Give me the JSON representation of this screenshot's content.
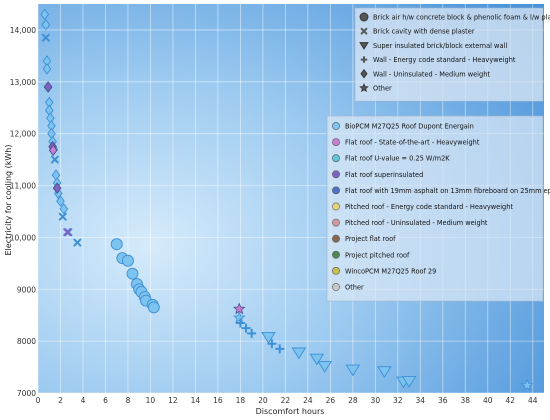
{
  "chart_data": {
    "type": "scatter",
    "xlabel": "Discomfort hours",
    "ylabel": "Electricity for cooling (kWh)",
    "xlim": [
      0,
      45
    ],
    "ylim": [
      7000,
      14500
    ],
    "x_ticks": [
      0,
      2,
      4,
      6,
      8,
      10,
      12,
      14,
      16,
      18,
      20,
      22,
      24,
      26,
      28,
      30,
      32,
      34,
      36,
      38,
      40,
      42,
      44
    ],
    "y_ticks": [
      7000,
      8000,
      9000,
      10000,
      11000,
      12000,
      13000,
      14000
    ],
    "y_tick_labels": [
      "7000",
      "8000",
      "9000",
      "10,000",
      "11,000",
      "12,000",
      "13,000",
      "14,000"
    ],
    "grid": true,
    "colors": {
      "bg_light": "#cfe6fa",
      "bg_dark": "#4f97dd",
      "marker_fill": "#7dc3ef",
      "marker_stroke": "#3d8fd6",
      "grid": "#ffffff"
    },
    "legend_walls": {
      "position": "top-right",
      "entries": [
        {
          "label": "Brick air h/w concrete block & phenolic foam & l/w plaster",
          "marker": "circle",
          "color": "#555555"
        },
        {
          "label": "Brick cavity with dense plaster",
          "marker": "x",
          "color": "#555555"
        },
        {
          "label": "Super insulated brick/block external wall",
          "marker": "triangle-down",
          "color": "#555555"
        },
        {
          "label": "Wall - Energy code standard - Heavyweight",
          "marker": "plus",
          "color": "#555555"
        },
        {
          "label": "Wall - Uninsulated - Medium weight",
          "marker": "diamond",
          "color": "#555555"
        },
        {
          "label": "Other",
          "marker": "star",
          "color": "#555555"
        }
      ]
    },
    "legend_roofs": {
      "position": "right",
      "entries": [
        {
          "label": "BioPCM M27Q25 Roof Dupont Energain",
          "color": "#7dc3ef"
        },
        {
          "label": "Flat roof - State-of-the-art - Heavyweight",
          "color": "#c97fd0"
        },
        {
          "label": "Flat roof U-value = 0.25 W/m2K",
          "color": "#62c4d8"
        },
        {
          "label": "Flat roof superinsulated",
          "color": "#7d63c4"
        },
        {
          "label": "Flat roof with 19mm asphalt on 13mm fibreboard on 25mm eps slab",
          "color": "#4f72c8"
        },
        {
          "label": "Pitched roof - Energy code standard - Heavyweight",
          "color": "#e6d47a"
        },
        {
          "label": "Pitched roof - Uninsulated - Medium weight",
          "color": "#cf9ba0"
        },
        {
          "label": "Project flat roof",
          "color": "#8a6850"
        },
        {
          "label": "Project pitched roof",
          "color": "#4f8a52"
        },
        {
          "label": "WincoPCM M27Q25 Roof 29",
          "color": "#c8c04a"
        },
        {
          "label": "Other",
          "color": "#c8c8c8"
        }
      ]
    },
    "series": [
      {
        "wall": "diamond",
        "roof_color": "#7dc3ef",
        "points": [
          [
            0.6,
            14300
          ],
          [
            0.7,
            14100
          ],
          [
            0.8,
            13400
          ],
          [
            0.8,
            13250
          ],
          [
            0.9,
            12900
          ],
          [
            1.0,
            12600
          ],
          [
            1.0,
            12450
          ],
          [
            1.1,
            12300
          ],
          [
            1.2,
            12150
          ],
          [
            1.2,
            12000
          ],
          [
            1.3,
            11850
          ],
          [
            1.4,
            11700
          ],
          [
            1.6,
            11200
          ],
          [
            1.7,
            11050
          ],
          [
            1.8,
            10850
          ],
          [
            2.0,
            10700
          ],
          [
            2.3,
            10550
          ]
        ]
      },
      {
        "wall": "diamond",
        "roof_color": "#7d63c4",
        "points": [
          [
            0.9,
            12900
          ],
          [
            1.3,
            11750
          ],
          [
            1.7,
            10950
          ]
        ]
      },
      {
        "wall": "diamond",
        "roof_color": "#c97fd0",
        "points": [
          [
            1.35,
            11680
          ]
        ]
      },
      {
        "wall": "x",
        "roof_color": "#7dc3ef",
        "points": [
          [
            0.7,
            13850
          ],
          [
            1.5,
            11500
          ],
          [
            2.2,
            10400
          ],
          [
            2.7,
            10100
          ],
          [
            3.5,
            9900
          ]
        ]
      },
      {
        "wall": "x",
        "roof_color": "#7d63c4",
        "points": [
          [
            2.6,
            10100
          ]
        ]
      },
      {
        "wall": "circle",
        "roof_color": "#7dc3ef",
        "points": [
          [
            7.0,
            9870
          ],
          [
            7.5,
            9600
          ],
          [
            8.0,
            9550
          ],
          [
            8.4,
            9300
          ],
          [
            8.8,
            9100
          ],
          [
            9.0,
            9000
          ],
          [
            9.2,
            8950
          ],
          [
            9.5,
            8850
          ],
          [
            9.6,
            8780
          ],
          [
            10.2,
            8700
          ],
          [
            10.3,
            8650
          ]
        ]
      },
      {
        "wall": "star",
        "roof_color": "#c97fd0",
        "points": [
          [
            17.9,
            8620
          ]
        ]
      },
      {
        "wall": "star",
        "roof_color": "#7dc3ef",
        "points": [
          [
            17.9,
            8450
          ],
          [
            43.5,
            7150
          ]
        ]
      },
      {
        "wall": "plus",
        "roof_color": "#7dc3ef",
        "points": [
          [
            18.0,
            8350
          ],
          [
            18.5,
            8250
          ],
          [
            19.0,
            8150
          ],
          [
            20.8,
            7950
          ],
          [
            21.5,
            7850
          ]
        ]
      },
      {
        "wall": "triangle-down",
        "roof_color": "#7dc3ef",
        "points": [
          [
            20.5,
            8080
          ],
          [
            23.2,
            7780
          ],
          [
            24.8,
            7660
          ],
          [
            25.5,
            7520
          ],
          [
            28.0,
            7450
          ],
          [
            30.8,
            7420
          ],
          [
            32.5,
            7220
          ],
          [
            33.0,
            7230
          ]
        ]
      }
    ]
  }
}
